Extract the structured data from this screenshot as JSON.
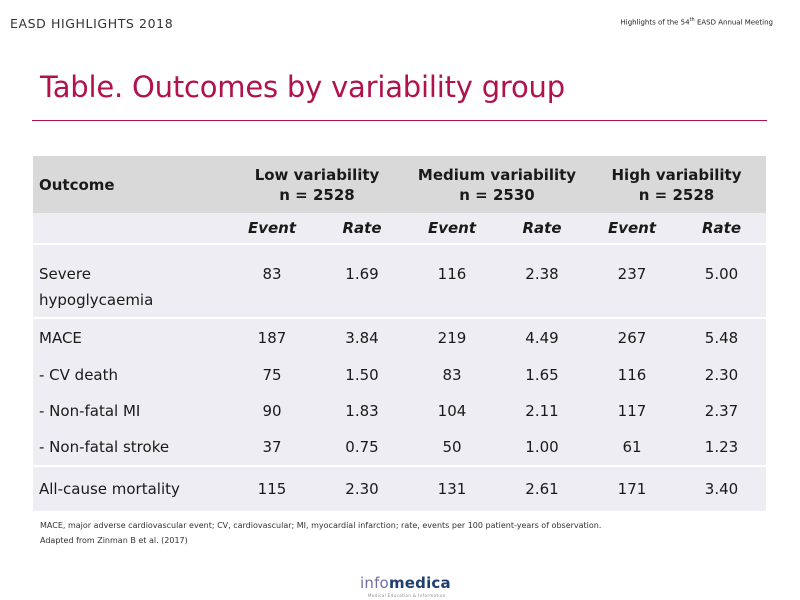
{
  "header": {
    "left": "EASD HIGHLIGHTS 2018",
    "right_prefix": "Highlights of the 54",
    "right_sup": "th",
    "right_suffix": " EASD Annual Meeting"
  },
  "title": "Table. Outcomes by variability group",
  "table": {
    "outcome_header": "Outcome",
    "groups": [
      {
        "name": "Low variability",
        "n": "n = 2528"
      },
      {
        "name": "Medium variability",
        "n": "n = 2530"
      },
      {
        "name": "High variability",
        "n": "n = 2528"
      }
    ],
    "subheaders": [
      "Event",
      "Rate",
      "Event",
      "Rate",
      "Event",
      "Rate"
    ],
    "rows": [
      {
        "label": "Severe",
        "label2": "hypoglycaemia",
        "cells": [
          "83",
          "1.69",
          "116",
          "2.38",
          "237",
          "5.00"
        ]
      },
      {
        "label": "MACE",
        "cells": [
          "187",
          "3.84",
          "219",
          "4.49",
          "267",
          "5.48"
        ]
      },
      {
        "label": "- CV death",
        "cells": [
          "75",
          "1.50",
          "83",
          "1.65",
          "116",
          "2.30"
        ]
      },
      {
        "label": "- Non-fatal MI",
        "cells": [
          "90",
          "1.83",
          "104",
          "2.11",
          "117",
          "2.37"
        ]
      },
      {
        "label": "- Non-fatal stroke",
        "cells": [
          "37",
          "0.75",
          "50",
          "1.00",
          "61",
          "1.23"
        ]
      },
      {
        "label": "All-cause mortality",
        "cells": [
          "115",
          "2.30",
          "131",
          "2.61",
          "171",
          "3.40"
        ]
      }
    ]
  },
  "footnote": {
    "line1": "MACE, major adverse cardiovascular event; CV, cardiovascular; MI, myocardial infarction; rate, events per 100 patient-years of observation.",
    "line2": "Adapted from Zinman B et al. (2017)"
  },
  "logo": {
    "part1": "info",
    "part2": "medica",
    "tagline": "Medical Education & Information"
  },
  "colors": {
    "accent": "#b0124d",
    "header_bg": "#d9d9d9",
    "body_bg": "#eeedf3"
  }
}
